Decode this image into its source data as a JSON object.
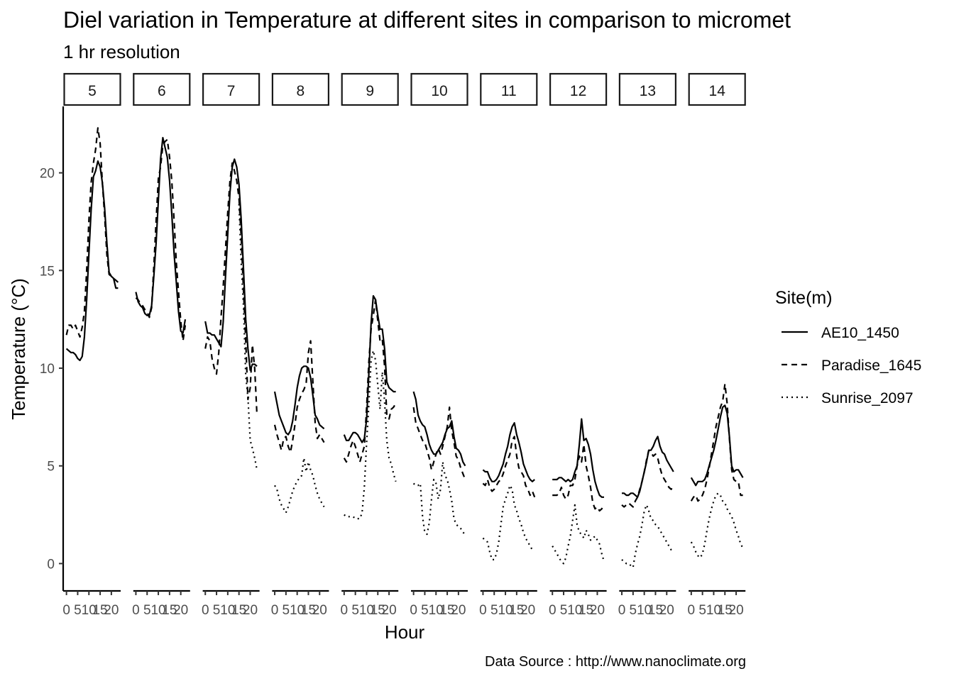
{
  "chart_data": {
    "type": "line",
    "title": "Diel variation in Temperature at different sites in comparison to micromet",
    "subtitle": "1 hr resolution",
    "xlabel": "Hour",
    "ylabel": "Temperature (°C)",
    "caption": "Data Source : http://www.nanoclimate.org",
    "legend_title": "Site(m)",
    "legend_position": "right",
    "grid": false,
    "ylim": [
      -1.4,
      23.4
    ],
    "xlim": [
      -1.15,
      24.15
    ],
    "y_ticks": [
      0,
      5,
      10,
      15,
      20
    ],
    "x_ticks": [
      0,
      5,
      10,
      15,
      20
    ],
    "panels": [
      "5",
      "6",
      "7",
      "8",
      "9",
      "10",
      "11",
      "12",
      "13",
      "14"
    ],
    "series": [
      {
        "name": "AE10_1450",
        "linestyle": "solid",
        "values": [
          [
            11.0,
            10.9,
            10.8,
            10.8,
            10.7,
            10.5,
            10.4,
            10.6,
            11.6,
            13.5,
            15.9,
            18.1,
            19.8,
            20.1,
            20.6,
            20.3,
            19.5,
            18.2,
            16.4,
            14.9,
            14.7,
            14.6,
            14.1,
            14.1
          ],
          [
            13.9,
            13.4,
            13.2,
            13.1,
            12.8,
            12.7,
            12.7,
            13.2,
            14.7,
            16.4,
            18.6,
            20.7,
            21.8,
            21.3,
            20.8,
            19.6,
            17.9,
            15.9,
            14.4,
            12.9,
            11.9,
            11.8,
            12.5,
            null
          ],
          [
            12.4,
            11.8,
            11.8,
            11.7,
            11.7,
            11.5,
            11.3,
            11.1,
            12.4,
            14.7,
            16.9,
            19.0,
            20.3,
            20.7,
            20.3,
            19.4,
            17.6,
            15.1,
            12.5,
            11.0,
            9.9,
            10.2,
            10.2,
            10.1
          ],
          [
            8.8,
            8.2,
            7.6,
            7.3,
            7.0,
            6.7,
            6.6,
            6.8,
            7.3,
            8.1,
            9.0,
            9.6,
            10.0,
            10.1,
            10.1,
            10.0,
            9.5,
            8.6,
            7.6,
            7.4,
            7.1,
            7.0,
            6.9,
            null
          ],
          [
            6.6,
            6.3,
            6.3,
            6.5,
            6.7,
            6.7,
            6.6,
            6.4,
            6.2,
            6.4,
            7.4,
            9.7,
            12.3,
            13.7,
            13.5,
            12.7,
            12.0,
            12.0,
            11.0,
            9.3,
            9.0,
            8.9,
            8.8,
            8.8
          ],
          [
            8.8,
            8.4,
            7.6,
            7.3,
            7.1,
            7.0,
            6.6,
            6.1,
            5.8,
            5.6,
            5.6,
            5.8,
            6.0,
            6.2,
            6.6,
            6.9,
            7.0,
            7.3,
            6.5,
            5.9,
            5.8,
            5.6,
            5.2,
            5.0
          ],
          [
            4.8,
            4.7,
            4.7,
            4.4,
            4.2,
            4.2,
            4.3,
            4.5,
            4.8,
            5.1,
            5.6,
            6.0,
            6.6,
            7.0,
            7.2,
            6.6,
            6.2,
            5.7,
            5.1,
            4.8,
            4.5,
            4.3,
            4.2,
            4.3
          ],
          [
            4.3,
            4.3,
            4.3,
            4.4,
            4.4,
            4.3,
            4.2,
            4.3,
            4.2,
            4.3,
            4.7,
            5.0,
            6.1,
            7.4,
            6.3,
            6.4,
            6.1,
            5.6,
            4.8,
            4.2,
            3.8,
            3.5,
            3.4,
            3.4
          ],
          [
            3.6,
            3.6,
            3.5,
            3.5,
            3.6,
            3.6,
            3.5,
            3.4,
            3.7,
            4.2,
            4.7,
            5.2,
            5.8,
            5.8,
            6.0,
            6.3,
            6.5,
            6.0,
            5.7,
            5.6,
            5.3,
            5.1,
            4.9,
            4.7
          ],
          [
            4.4,
            4.2,
            4.0,
            4.2,
            4.2,
            4.2,
            4.3,
            4.6,
            5.0,
            5.4,
            5.8,
            6.3,
            6.9,
            7.5,
            8.0,
            8.1,
            7.7,
            6.5,
            5.0,
            4.7,
            4.8,
            4.8,
            4.6,
            4.4
          ]
        ]
      },
      {
        "name": "Paradise_1645",
        "linestyle": "dashed",
        "values": [
          [
            11.7,
            12.2,
            12.2,
            12.0,
            12.2,
            11.9,
            11.6,
            12.1,
            12.9,
            15.0,
            17.6,
            19.5,
            20.5,
            21.2,
            22.3,
            21.5,
            19.5,
            17.8,
            15.8,
            14.8,
            14.7,
            14.6,
            14.5,
            14.4
          ],
          [
            13.6,
            13.5,
            13.3,
            13.2,
            13.0,
            12.9,
            12.6,
            13.1,
            15.2,
            17.5,
            19.7,
            20.3,
            21.4,
            21.6,
            21.7,
            20.8,
            19.6,
            17.6,
            15.4,
            13.9,
            12.4,
            11.4,
            12.2,
            null
          ],
          [
            11.0,
            11.6,
            11.4,
            10.5,
            10.0,
            9.7,
            10.8,
            12.6,
            14.2,
            16.1,
            18.0,
            19.6,
            20.5,
            20.1,
            19.6,
            18.7,
            16.7,
            14.0,
            11.4,
            8.4,
            9.0,
            11.2,
            10.0,
            7.6
          ],
          [
            7.1,
            6.6,
            6.2,
            5.8,
            6.4,
            6.5,
            6.0,
            5.7,
            6.3,
            7.1,
            8.0,
            8.4,
            8.7,
            8.9,
            9.2,
            10.8,
            11.4,
            9.3,
            7.2,
            6.4,
            6.6,
            6.4,
            6.2,
            null
          ],
          [
            5.4,
            5.2,
            5.6,
            6.0,
            6.3,
            6.0,
            5.6,
            5.2,
            5.6,
            6.0,
            8.0,
            10.3,
            12.0,
            12.7,
            13.5,
            12.4,
            11.4,
            11.5,
            10.1,
            7.6,
            7.4,
            7.9,
            8.0,
            8.2
          ],
          [
            8.0,
            7.2,
            6.9,
            6.6,
            6.3,
            6.2,
            5.8,
            5.4,
            4.8,
            5.2,
            5.6,
            5.9,
            5.6,
            6.0,
            6.5,
            7.0,
            8.0,
            6.8,
            6.2,
            5.5,
            5.3,
            4.9,
            4.6,
            4.3
          ],
          [
            4.1,
            4.0,
            4.3,
            3.9,
            3.7,
            3.8,
            4.0,
            4.2,
            4.3,
            4.6,
            5.0,
            5.3,
            5.6,
            6.3,
            6.5,
            5.5,
            4.9,
            4.7,
            4.5,
            4.0,
            3.8,
            3.5,
            3.7,
            3.4
          ],
          [
            3.5,
            3.5,
            3.5,
            3.6,
            3.9,
            3.5,
            3.3,
            3.5,
            4.0,
            4.0,
            4.3,
            5.0,
            5.5,
            5.2,
            6.1,
            5.0,
            4.5,
            3.9,
            3.1,
            2.8,
            2.9,
            2.7,
            2.8,
            3.0
          ],
          [
            3.0,
            2.9,
            3.0,
            3.1,
            3.0,
            2.9,
            3.2,
            3.4,
            3.8,
            4.2,
            4.7,
            5.3,
            5.8,
            5.7,
            5.5,
            5.6,
            5.4,
            4.9,
            4.5,
            4.3,
            4.1,
            3.9,
            3.8,
            4.0
          ],
          [
            3.2,
            3.4,
            3.5,
            3.2,
            3.3,
            3.5,
            3.8,
            4.3,
            4.9,
            5.6,
            6.3,
            7.0,
            7.5,
            8.0,
            8.3,
            9.2,
            8.2,
            6.4,
            4.8,
            4.3,
            4.2,
            4.2,
            3.5,
            3.5
          ]
        ]
      },
      {
        "name": "Sunrise_2097",
        "linestyle": "dotted",
        "values": [
          [
            null,
            null,
            null,
            null,
            null,
            null,
            null,
            null,
            null,
            null,
            null,
            null,
            null,
            null,
            null,
            null,
            null,
            null,
            null,
            null,
            null,
            null,
            null,
            null
          ],
          [
            null,
            null,
            null,
            null,
            null,
            null,
            null,
            null,
            null,
            null,
            null,
            null,
            null,
            null,
            null,
            null,
            null,
            null,
            null,
            null,
            null,
            null,
            null,
            null
          ],
          [
            null,
            null,
            null,
            null,
            null,
            null,
            null,
            null,
            null,
            null,
            null,
            null,
            null,
            null,
            null,
            18.4,
            15.4,
            13.2,
            9.6,
            8.5,
            6.3,
            5.9,
            5.4,
            4.8
          ],
          [
            4.0,
            3.8,
            3.3,
            3.0,
            2.8,
            2.6,
            2.9,
            3.3,
            3.7,
            4.0,
            4.2,
            4.4,
            4.5,
            5.4,
            4.7,
            5.2,
            4.8,
            4.5,
            4.0,
            3.6,
            3.3,
            3.1,
            2.9,
            null
          ],
          [
            2.5,
            2.4,
            2.4,
            2.4,
            2.4,
            2.3,
            2.3,
            2.3,
            2.6,
            3.9,
            6.2,
            8.1,
            10.4,
            10.9,
            10.4,
            9.1,
            7.9,
            9.8,
            8.3,
            6.3,
            5.4,
            5.1,
            4.6,
            4.2
          ],
          [
            4.1,
            4.0,
            4.0,
            4.1,
            2.4,
            1.6,
            1.5,
            2.1,
            3.3,
            4.3,
            4.1,
            3.3,
            3.8,
            5.2,
            4.5,
            4.3,
            3.8,
            3.2,
            2.3,
            2.0,
            1.9,
            1.8,
            1.6,
            1.5
          ],
          [
            1.3,
            1.2,
            1.1,
            0.6,
            0.2,
            0.2,
            0.5,
            1.1,
            2.0,
            2.9,
            3.3,
            3.6,
            4.0,
            3.8,
            3.0,
            2.7,
            2.3,
            2.0,
            1.6,
            1.3,
            1.1,
            0.9,
            0.7,
            0.7
          ],
          [
            0.9,
            0.7,
            0.5,
            0.3,
            0.1,
            0.0,
            0.3,
            0.9,
            1.4,
            2.2,
            3.0,
            2.0,
            1.6,
            1.5,
            1.3,
            1.7,
            1.5,
            1.2,
            1.3,
            1.4,
            1.2,
            1.0,
            0.5,
            0.1
          ],
          [
            0.2,
            0.1,
            0.0,
            0.0,
            -0.1,
            -0.2,
            0.5,
            1.0,
            1.4,
            2.0,
            2.7,
            3.0,
            2.7,
            2.3,
            2.2,
            2.0,
            1.9,
            1.7,
            1.5,
            1.3,
            1.1,
            0.9,
            0.7,
            0.6
          ],
          [
            1.1,
            0.9,
            0.6,
            0.4,
            0.3,
            0.5,
            1.0,
            1.7,
            2.3,
            2.8,
            3.2,
            3.5,
            3.6,
            3.5,
            3.2,
            3.1,
            2.8,
            2.6,
            2.4,
            2.1,
            1.7,
            1.4,
            1.0,
            0.8
          ]
        ]
      }
    ]
  }
}
